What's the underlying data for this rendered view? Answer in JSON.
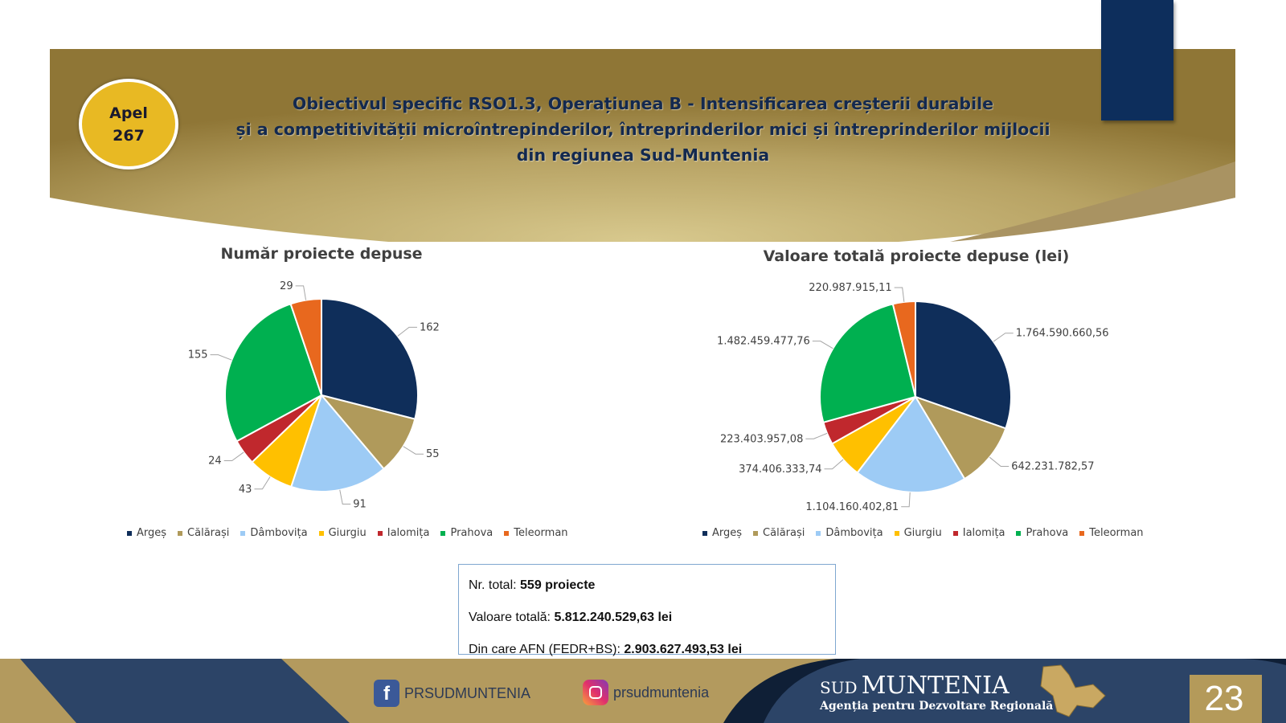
{
  "header": {
    "apel_label": "Apel",
    "apel_number": "267",
    "title_lines": [
      "Obiectivul specific RSO1.3, Operațiunea B - Intensificarea creșterii durabile",
      "și a competitivității microîntrepinderilor, întreprinderilor mici și întreprinderilor mijlocii",
      "din regiunea Sud-Muntenia"
    ]
  },
  "chart_data": [
    {
      "type": "pie",
      "title": "Număr proiecte depuse",
      "categories": [
        "Argeș",
        "Călărași",
        "Dâmbovița",
        "Giurgiu",
        "Ialomița",
        "Prahova",
        "Teleorman"
      ],
      "values": [
        162,
        55,
        91,
        43,
        24,
        155,
        29
      ],
      "labels": [
        "162",
        "55",
        "91",
        "43",
        "24",
        "155",
        "29"
      ],
      "colors": [
        "#0f2e5a",
        "#b09a5b",
        "#9dcbf5",
        "#ffc000",
        "#c0282d",
        "#00b050",
        "#e8681e"
      ],
      "legend": "bottom"
    },
    {
      "type": "pie",
      "title": "Valoare totală proiecte depuse (lei)",
      "categories": [
        "Argeș",
        "Călărași",
        "Dâmbovița",
        "Giurgiu",
        "Ialomița",
        "Prahova",
        "Teleorman"
      ],
      "values": [
        1764590660.56,
        642231782.57,
        1104160402.81,
        374406333.74,
        223403957.08,
        1482459477.76,
        220987915.11
      ],
      "labels": [
        "1.764.590.660,56",
        "642.231.782,57",
        "1.104.160.402,81",
        "374.406.333,74",
        "223.403.957,08",
        "1.482.459.477,76",
        "220.987.915,11"
      ],
      "colors": [
        "#0f2e5a",
        "#b09a5b",
        "#9dcbf5",
        "#ffc000",
        "#c0282d",
        "#00b050",
        "#e8681e"
      ],
      "legend": "bottom"
    }
  ],
  "totals": {
    "count_label": "Nr. total: ",
    "count_value": "559 proiecte",
    "value_label": "Valoare totală: ",
    "value_value": "5.812.240.529,63 lei",
    "afn_label": "Din care AFN (FEDR+BS): ",
    "afn_value": "2.903.627.493,53 lei"
  },
  "footer": {
    "facebook": "PRSUDMUNTENIA",
    "instagram": "prsudmuntenia",
    "logo_sud": "SUD",
    "logo_muntenia": "MUNTENIA",
    "logo_sub": "Agenția pentru Dezvoltare Regională",
    "page": "23"
  }
}
